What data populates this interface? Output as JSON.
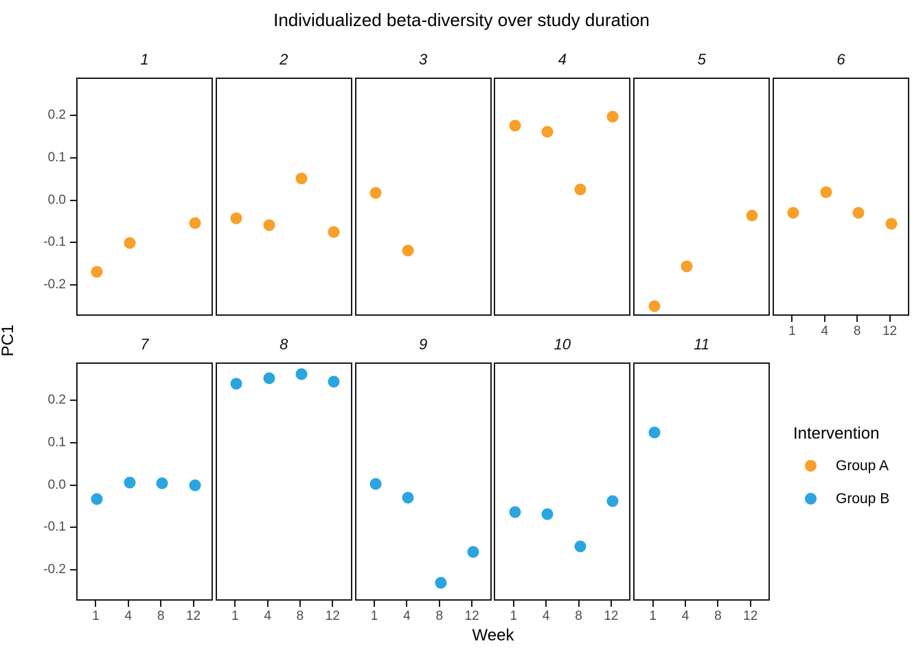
{
  "title": "Individualized beta-diversity over study duration",
  "axes": {
    "x_label": "Week",
    "y_label": "PC1",
    "x_tick_labels": [
      "1",
      "4",
      "8",
      "12"
    ],
    "y_tick_labels": [
      "0.2",
      "0.1",
      "0.0",
      "-0.1",
      "-0.2"
    ],
    "y_tick_values": [
      0.2,
      0.1,
      0.0,
      -0.1,
      -0.2
    ]
  },
  "legend": {
    "title": "Intervention",
    "items": [
      {
        "label": "Group A",
        "color": "#F8A029"
      },
      {
        "label": "Group B",
        "color": "#2BA5E0"
      }
    ]
  },
  "colors": {
    "group_a": "#F8A029",
    "group_b": "#2BA5E0",
    "tick_text": "#4d4d4d",
    "panel_border": "#1a1a1a"
  },
  "chart_data": {
    "type": "scatter",
    "title": "Individualized beta-diversity over study duration",
    "xlabel": "Week",
    "ylabel": "PC1",
    "x_categories": [
      1,
      4,
      8,
      12
    ],
    "ylim": [
      -0.2725,
      0.2895
    ],
    "grid": false,
    "legend_position": "right",
    "facet_variable": "subject",
    "facets": [
      {
        "label": "1",
        "row": 0,
        "col": 0,
        "group": "Group A",
        "points": [
          {
            "week": 1,
            "pc1": -0.165
          },
          {
            "week": 4,
            "pc1": -0.098
          },
          {
            "week": 12,
            "pc1": -0.05
          }
        ]
      },
      {
        "label": "2",
        "row": 0,
        "col": 1,
        "group": "Group A",
        "points": [
          {
            "week": 1,
            "pc1": -0.04
          },
          {
            "week": 4,
            "pc1": -0.055
          },
          {
            "week": 8,
            "pc1": 0.055
          },
          {
            "week": 12,
            "pc1": -0.072
          }
        ]
      },
      {
        "label": "3",
        "row": 0,
        "col": 2,
        "group": "Group A",
        "points": [
          {
            "week": 1,
            "pc1": 0.02
          },
          {
            "week": 4,
            "pc1": -0.115
          }
        ]
      },
      {
        "label": "4",
        "row": 0,
        "col": 3,
        "group": "Group A",
        "points": [
          {
            "week": 1,
            "pc1": 0.18
          },
          {
            "week": 4,
            "pc1": 0.165
          },
          {
            "week": 8,
            "pc1": 0.028
          },
          {
            "week": 12,
            "pc1": 0.2
          }
        ]
      },
      {
        "label": "5",
        "row": 0,
        "col": 4,
        "group": "Group A",
        "points": [
          {
            "week": 1,
            "pc1": -0.247
          },
          {
            "week": 4,
            "pc1": -0.152
          },
          {
            "week": 12,
            "pc1": -0.032
          }
        ]
      },
      {
        "label": "6",
        "row": 0,
        "col": 5,
        "group": "Group A",
        "show_x_axis": true,
        "points": [
          {
            "week": 1,
            "pc1": -0.026
          },
          {
            "week": 4,
            "pc1": 0.023
          },
          {
            "week": 8,
            "pc1": -0.026
          },
          {
            "week": 12,
            "pc1": -0.052
          }
        ]
      },
      {
        "label": "7",
        "row": 1,
        "col": 0,
        "group": "Group B",
        "show_x_axis": true,
        "points": [
          {
            "week": 1,
            "pc1": -0.029
          },
          {
            "week": 4,
            "pc1": 0.01
          },
          {
            "week": 8,
            "pc1": 0.008
          },
          {
            "week": 12,
            "pc1": 0.003
          }
        ]
      },
      {
        "label": "8",
        "row": 1,
        "col": 1,
        "group": "Group B",
        "show_x_axis": true,
        "points": [
          {
            "week": 1,
            "pc1": 0.242
          },
          {
            "week": 4,
            "pc1": 0.255
          },
          {
            "week": 8,
            "pc1": 0.265
          },
          {
            "week": 12,
            "pc1": 0.248
          }
        ]
      },
      {
        "label": "9",
        "row": 1,
        "col": 2,
        "group": "Group B",
        "show_x_axis": true,
        "points": [
          {
            "week": 1,
            "pc1": 0.006
          },
          {
            "week": 4,
            "pc1": -0.027
          },
          {
            "week": 8,
            "pc1": -0.227
          },
          {
            "week": 12,
            "pc1": -0.155
          }
        ]
      },
      {
        "label": "10",
        "row": 1,
        "col": 3,
        "group": "Group B",
        "show_x_axis": true,
        "points": [
          {
            "week": 1,
            "pc1": -0.061
          },
          {
            "week": 4,
            "pc1": -0.066
          },
          {
            "week": 8,
            "pc1": -0.142
          },
          {
            "week": 12,
            "pc1": -0.034
          }
        ]
      },
      {
        "label": "11",
        "row": 1,
        "col": 4,
        "group": "Group B",
        "show_x_axis": true,
        "points": [
          {
            "week": 1,
            "pc1": 0.127
          }
        ]
      }
    ]
  }
}
